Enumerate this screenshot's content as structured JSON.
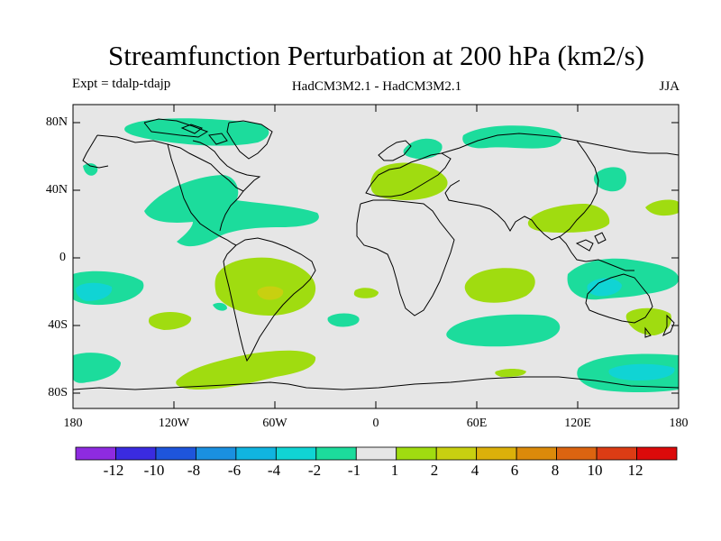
{
  "title": "Streamfunction Perturbation at 200 hPa (km2/s)",
  "subtitle_left": "Expt = tdalp-tdajp",
  "subtitle_center": "HadCM3M2.1 - HadCM3M2.1",
  "subtitle_right": "JJA",
  "map": {
    "background_color": "#e6e6e6",
    "lat_labels": [
      "80N",
      "40N",
      "0",
      "40S",
      "80S"
    ],
    "lon_labels": [
      "180",
      "120W",
      "60W",
      "0",
      "60E",
      "120E",
      "180"
    ]
  },
  "colorbar": {
    "colors": [
      "#8e2be0",
      "#3a2be0",
      "#1e55dc",
      "#1a90e0",
      "#10b4e0",
      "#10d4d4",
      "#1cdc9c",
      "#e6e6e6",
      "#a0dc10",
      "#c8d010",
      "#dcb00a",
      "#dc8a0a",
      "#dc6410",
      "#dc3c14",
      "#dc0a0a"
    ],
    "labels": [
      "-12",
      "-10",
      "-8",
      "-6",
      "-4",
      "-2",
      "-1",
      "1",
      "2",
      "4",
      "6",
      "8",
      "10",
      "12"
    ]
  }
}
